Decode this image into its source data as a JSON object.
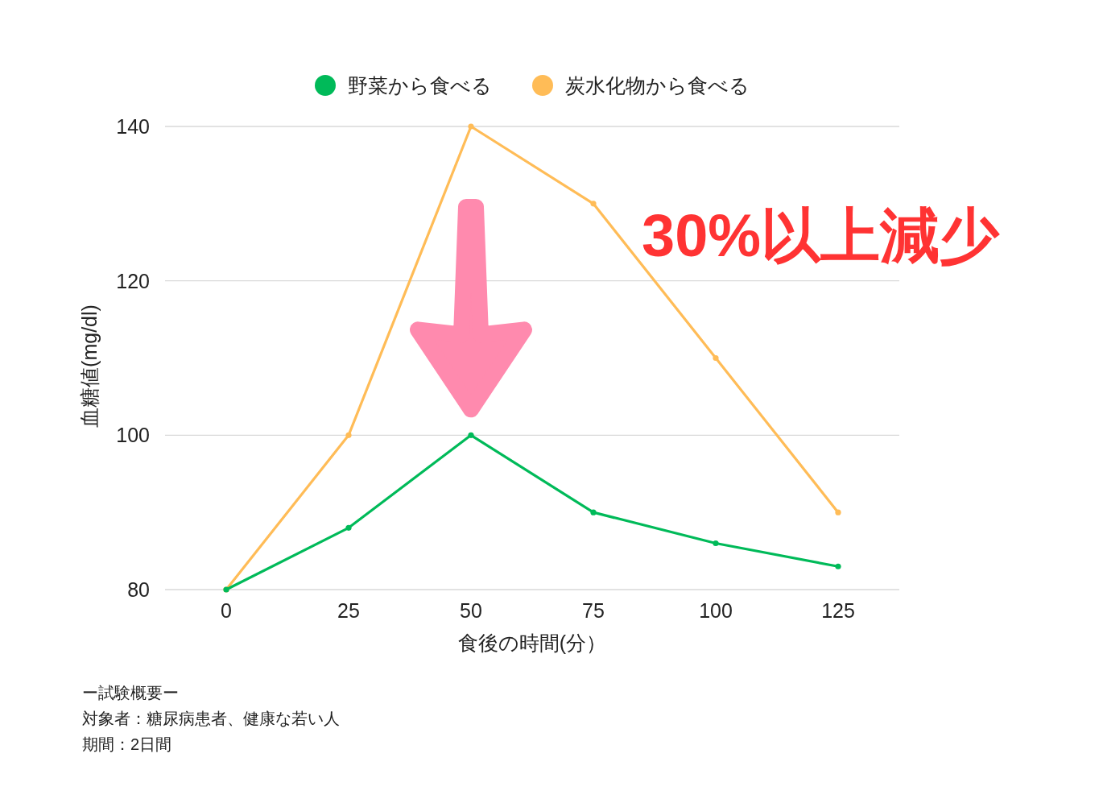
{
  "chart_data": {
    "type": "line",
    "categories": [
      "0",
      "25",
      "50",
      "75",
      "100",
      "125"
    ],
    "series": [
      {
        "name": "野菜から食べる",
        "color": "#00ba59",
        "values": [
          80,
          88,
          100,
          90,
          86,
          83
        ]
      },
      {
        "name": "炭水化物から食べる",
        "color": "#ffbc57",
        "values": [
          80,
          100,
          140,
          130,
          110,
          90
        ]
      }
    ],
    "xlabel": "食後の時間(分）",
    "ylabel": "血糖値(mg/dl)",
    "ylim": [
      80,
      140
    ],
    "yticks": [
      80,
      100,
      120,
      140
    ],
    "grid": "y",
    "legend": "top",
    "marker": "circle",
    "line_style": "solid",
    "annotations": [
      "30%以上減少",
      "ー試験概要ー",
      "対象者：糖尿病患者、健康な若い人",
      "期間：2日間"
    ]
  }
}
